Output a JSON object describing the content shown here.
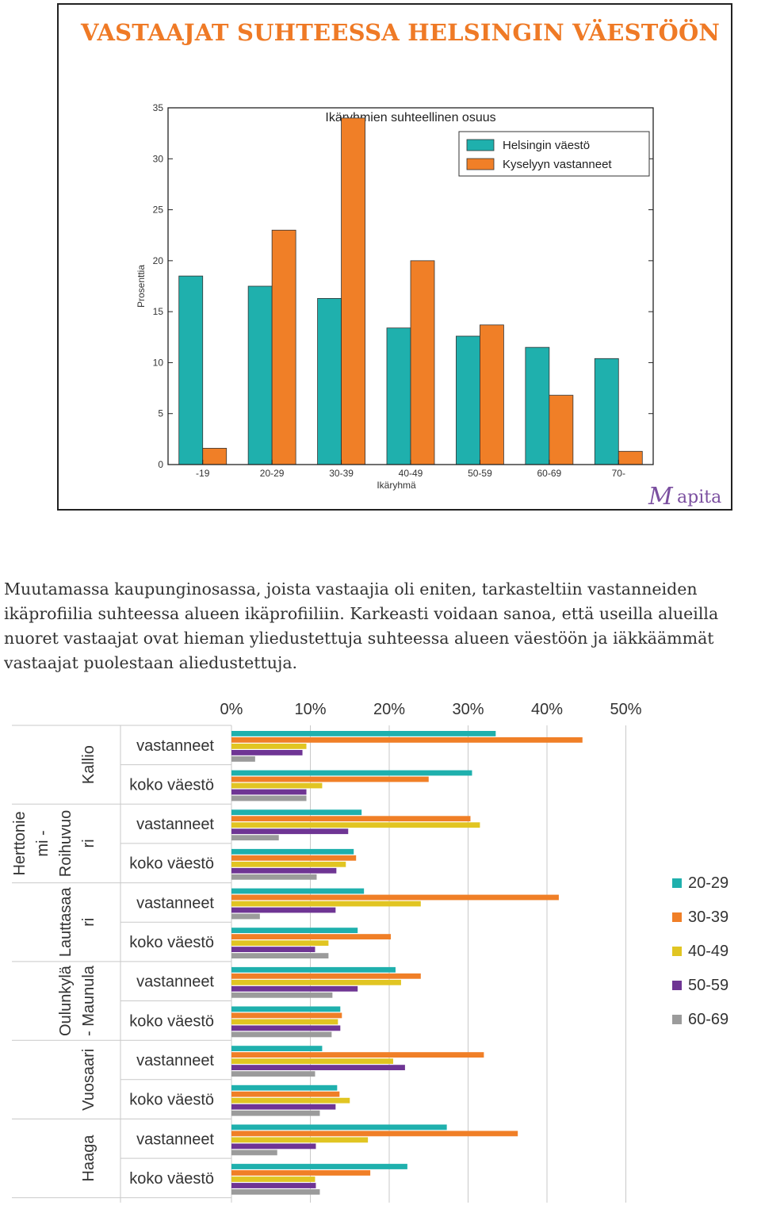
{
  "header": {
    "title": "VASTAAJAT SUHTEESSA HELSINGIN VÄESTÖÖN"
  },
  "logo": {
    "text": "apita",
    "initial": "M",
    "color": "#7b4fa0"
  },
  "intro": {
    "text": "Muutamassa kaupunginosassa, joista vastaajia oli eniten, tarkasteltiin vastanneiden ikäprofiilia suhteessa alueen ikäprofiiliin. Karkeasti voidaan sanoa, että useilla alueilla nuoret vastaajat ovat hieman yliedustettuja suhteessa alueen väestöön ja iäkkäämmät vastaajat puolestaan aliedustettuja."
  },
  "chart_data": [
    {
      "type": "bar",
      "title": "Ikäryhmien suhteellinen osuus",
      "xlabel": "Ikäryhmä",
      "ylabel": "Prosenttia",
      "ylim": [
        0,
        35
      ],
      "yticks": [
        0,
        5,
        10,
        15,
        20,
        25,
        30,
        35
      ],
      "categories": [
        "-19",
        "20-29",
        "30-39",
        "40-49",
        "50-59",
        "60-69",
        "70-"
      ],
      "series": [
        {
          "name": "Helsingin väestö",
          "color": "#1fb0ad",
          "values": [
            18.5,
            17.5,
            16.3,
            13.4,
            12.6,
            11.5,
            10.4
          ]
        },
        {
          "name": "Kyselyyn vastanneet",
          "color": "#f07f27",
          "values": [
            1.6,
            23.0,
            34.0,
            20.0,
            13.7,
            6.8,
            1.3
          ]
        }
      ],
      "legend": "top-right",
      "grid": false
    },
    {
      "type": "bar",
      "orientation": "horizontal",
      "xlim": [
        0,
        50
      ],
      "xticks": [
        "0%",
        "10%",
        "20%",
        "30%",
        "40%",
        "50%"
      ],
      "grid": true,
      "legend": "right",
      "groups": [
        "Kallio",
        "Herttoniemi - Roihuvuori",
        "Lauttasaari",
        "Oulunkylä - Maunula",
        "Vuosaari",
        "Haaga"
      ],
      "group_labels": [
        [
          "Kallio"
        ],
        [
          "Herttonie",
          "mi -",
          "Roihuvuo",
          "ri"
        ],
        [
          "Lauttasaa",
          "ri"
        ],
        [
          "Oulunkylä",
          "- Maunula"
        ],
        [
          "Vuosaari"
        ],
        [
          "Haaga"
        ]
      ],
      "row_labels": [
        "vastanneet",
        "koko väestö"
      ],
      "series": [
        {
          "name": "20-29",
          "color": "#1fb0ad"
        },
        {
          "name": "30-39",
          "color": "#f07f27"
        },
        {
          "name": "40-49",
          "color": "#e1c522"
        },
        {
          "name": "50-59",
          "color": "#6f3594"
        },
        {
          "name": "60-69",
          "color": "#9b9b9b"
        }
      ],
      "values": [
        [
          [
            33.5,
            44.5,
            9.5,
            9.0,
            3.0
          ],
          [
            30.5,
            25.0,
            11.5,
            9.5,
            9.5
          ]
        ],
        [
          [
            16.5,
            30.3,
            31.5,
            14.8,
            6.0
          ],
          [
            15.5,
            15.8,
            14.5,
            13.3,
            10.8
          ]
        ],
        [
          [
            16.8,
            41.5,
            24.0,
            13.2,
            3.6
          ],
          [
            16.0,
            20.2,
            12.3,
            10.6,
            12.3
          ]
        ],
        [
          [
            20.8,
            24.0,
            21.5,
            16.0,
            12.8
          ],
          [
            13.8,
            14.0,
            13.5,
            13.8,
            12.7
          ]
        ],
        [
          [
            11.5,
            32.0,
            20.5,
            22.0,
            10.6
          ],
          [
            13.4,
            13.7,
            15.0,
            13.2,
            11.2
          ]
        ],
        [
          [
            27.3,
            36.3,
            17.3,
            10.7,
            5.8
          ],
          [
            22.3,
            17.6,
            10.6,
            10.7,
            11.2
          ]
        ]
      ]
    }
  ]
}
